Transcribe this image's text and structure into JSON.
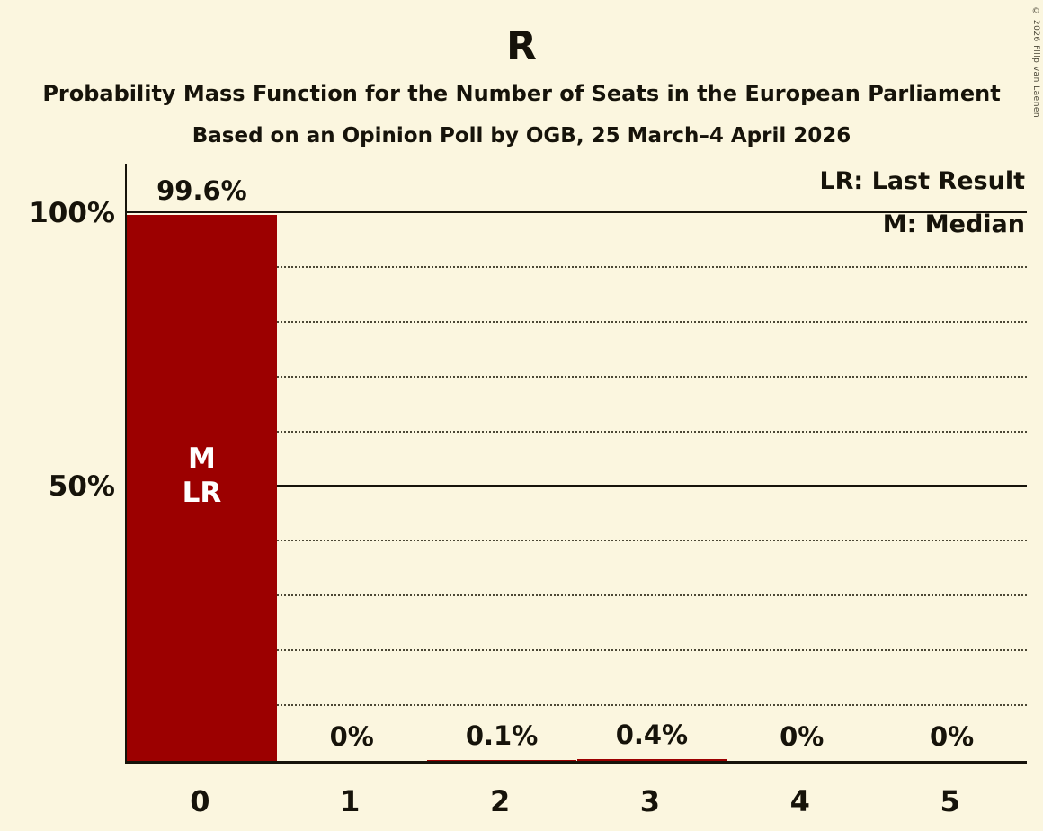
{
  "title": "R",
  "subtitle": "Probability Mass Function for the Number of Seats in the European Parliament",
  "subsubtitle": "Based on an Opinion Poll by OGB, 25 March–4 April 2026",
  "copyright": "© 2026 Filip van Laenen",
  "legend": {
    "last_result": "LR: Last Result",
    "median": "M: Median"
  },
  "colors": {
    "background": "#FBF6DF",
    "bar": "#9C0000",
    "text": "#16130a",
    "bar_annotation_text": "#FFFFFF"
  },
  "chart_data": {
    "type": "bar",
    "title": "R",
    "categories": [
      "0",
      "1",
      "2",
      "3",
      "4",
      "5"
    ],
    "values": [
      99.6,
      0,
      0.1,
      0.4,
      0,
      0
    ],
    "value_labels": [
      "99.6%",
      "0%",
      "0.1%",
      "0.4%",
      "0%",
      "0%"
    ],
    "ylabel": "",
    "xlabel": "",
    "ylim": [
      0,
      109
    ],
    "yticks": [
      {
        "value": 100,
        "label": "100%"
      },
      {
        "value": 50,
        "label": "50%"
      }
    ],
    "gridlines_solid": [
      100,
      50
    ],
    "gridlines_dotted": [
      90,
      80,
      70,
      60,
      40,
      30,
      20,
      10
    ],
    "grid": true,
    "legend_position": "top-right",
    "bar_annotations": [
      {
        "bar": 0,
        "lines": [
          "M",
          "LR"
        ]
      }
    ]
  }
}
